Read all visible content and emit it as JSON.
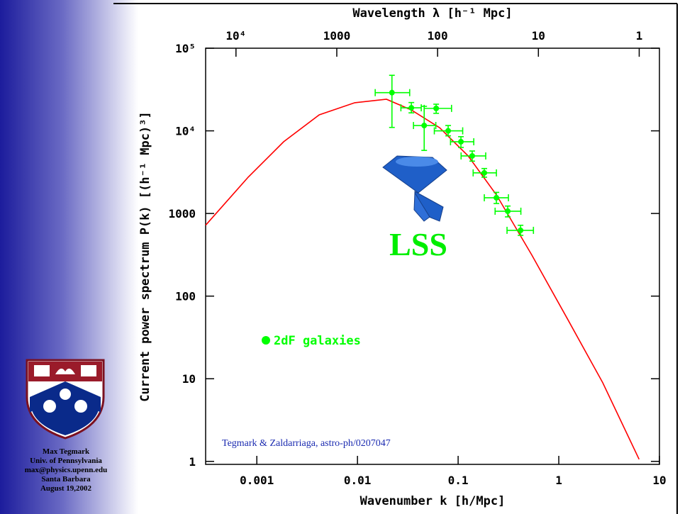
{
  "sidebar": {
    "lines": [
      "Max Tegmark",
      "Univ. of Pennsylvania",
      "max@physics.upenn.edu",
      "Santa Barbara",
      "August 19,2002"
    ]
  },
  "chart_data": {
    "type": "errorbar",
    "x_label": "Wavenumber k [h/Mpc]",
    "x2_label": "Wavelength λ [h⁻¹ Mpc]",
    "y_label": "Current power spectrum P(k) [(h⁻¹ Mpc)³]",
    "xscale": "log",
    "yscale": "log",
    "xlim": [
      0.00031,
      10
    ],
    "ylim": [
      0.92,
      100000
    ],
    "x2lim": [
      20000,
      0.63
    ],
    "xticks": [
      0.001,
      0.01,
      0.1,
      1,
      10
    ],
    "yticks": [
      1,
      10,
      100,
      1000,
      {
        "value": 10000,
        "label": "10⁴"
      },
      {
        "value": 100000,
        "label": "10⁵"
      }
    ],
    "x2ticks": [
      {
        "value": 10000,
        "label": "10⁴"
      },
      1000,
      100,
      10,
      1
    ],
    "series": [
      {
        "name": "2dF galaxies",
        "color": "#00ff00",
        "x": [
          0.022,
          0.0343,
          0.046,
          0.0605,
          0.0796,
          0.1066,
          0.138,
          0.182,
          0.24,
          0.311,
          0.417
        ],
        "values": [
          29000,
          19000,
          11600,
          18700,
          10000,
          7380,
          4970,
          3100,
          1550,
          1065,
          625
        ],
        "x_low": [
          0.015,
          0.027,
          0.036,
          0.046,
          0.058,
          0.084,
          0.107,
          0.141,
          0.182,
          0.233,
          0.306
        ],
        "x_high": [
          0.033,
          0.043,
          0.06,
          0.086,
          0.111,
          0.143,
          0.188,
          0.24,
          0.316,
          0.42,
          0.56
        ],
        "y_low": [
          11000,
          16500,
          5800,
          16300,
          8700,
          6300,
          4300,
          2750,
          1320,
          910,
          544
        ],
        "y_high": [
          47000,
          22000,
          19800,
          21000,
          11600,
          8500,
          5700,
          3500,
          1800,
          1230,
          720
        ]
      }
    ],
    "model": {
      "color": "#ff0000",
      "x": [
        0.00031,
        0.00082,
        0.00185,
        0.00417,
        0.0094,
        0.0194,
        0.0343,
        0.0656,
        0.1256,
        0.24,
        0.54,
        1.22,
        2.73,
        6.28
      ],
      "values": [
        720,
        2750,
        7380,
        15600,
        21900,
        24100,
        17900,
        10900,
        4970,
        1680,
        313,
        53,
        8.96,
        1.06
      ]
    },
    "annotations": [
      "LSS",
      "Tegmark & Zaldarriaga, astro-ph/0207047"
    ]
  }
}
